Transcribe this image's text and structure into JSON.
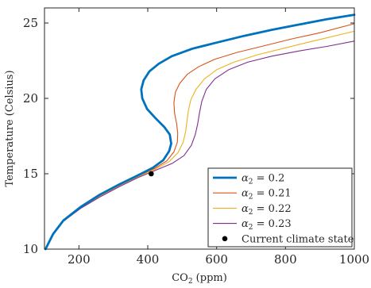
{
  "chart_data": {
    "type": "line",
    "title": "",
    "xlabel": "CO",
    "xlabel_sub": "2",
    "xlabel_unit": " (ppm)",
    "ylabel": "Temperature (Celsius)",
    "xlim": [
      100,
      1000
    ],
    "ylim": [
      10,
      26
    ],
    "xticks": [
      200,
      400,
      600,
      800,
      1000
    ],
    "yticks": [
      10,
      15,
      20,
      25
    ],
    "grid": false,
    "legend_position": "bottom-right",
    "series": [
      {
        "name": "α2 = 0.2",
        "name_prefix": "α",
        "name_sub": "2",
        "name_suffix": " = 0.2",
        "color": "#0072BD",
        "emphasis": true,
        "points": [
          [
            103,
            10
          ],
          [
            125,
            11
          ],
          [
            155,
            11.9
          ],
          [
            205,
            12.8
          ],
          [
            260,
            13.6
          ],
          [
            318,
            14.3
          ],
          [
            372,
            14.9
          ],
          [
            415,
            15.4
          ],
          [
            445,
            15.9
          ],
          [
            462,
            16.5
          ],
          [
            468,
            17
          ],
          [
            464,
            17.6
          ],
          [
            448,
            18.1
          ],
          [
            422,
            18.7
          ],
          [
            398,
            19.3
          ],
          [
            384,
            20
          ],
          [
            381,
            20.6
          ],
          [
            388,
            21.2
          ],
          [
            405,
            21.8
          ],
          [
            432,
            22.3
          ],
          [
            470,
            22.8
          ],
          [
            530,
            23.3
          ],
          [
            600,
            23.7
          ],
          [
            680,
            24.15
          ],
          [
            760,
            24.55
          ],
          [
            840,
            24.9
          ],
          [
            920,
            25.25
          ],
          [
            1000,
            25.55
          ]
        ]
      },
      {
        "name": "α2 = 0.21",
        "name_prefix": "α",
        "name_sub": "2",
        "name_suffix": " = 0.21",
        "color": "#D95319",
        "emphasis": false,
        "points": [
          [
            103,
            10
          ],
          [
            125,
            11
          ],
          [
            155,
            11.9
          ],
          [
            205,
            12.8
          ],
          [
            260,
            13.55
          ],
          [
            318,
            14.25
          ],
          [
            372,
            14.85
          ],
          [
            420,
            15.35
          ],
          [
            455,
            15.85
          ],
          [
            476,
            16.45
          ],
          [
            486,
            17.1
          ],
          [
            487,
            17.7
          ],
          [
            484,
            18.3
          ],
          [
            478,
            19
          ],
          [
            476,
            19.7
          ],
          [
            480,
            20.4
          ],
          [
            493,
            21
          ],
          [
            515,
            21.6
          ],
          [
            548,
            22.1
          ],
          [
            595,
            22.6
          ],
          [
            660,
            23.05
          ],
          [
            740,
            23.5
          ],
          [
            820,
            23.95
          ],
          [
            900,
            24.35
          ],
          [
            1000,
            24.95
          ]
        ]
      },
      {
        "name": "α2 = 0.22",
        "name_prefix": "α",
        "name_sub": "2",
        "name_suffix": " = 0.22",
        "color": "#EDB120",
        "emphasis": false,
        "points": [
          [
            103,
            10
          ],
          [
            125,
            11
          ],
          [
            155,
            11.9
          ],
          [
            205,
            12.75
          ],
          [
            260,
            13.5
          ],
          [
            318,
            14.2
          ],
          [
            372,
            14.8
          ],
          [
            422,
            15.3
          ],
          [
            462,
            15.8
          ],
          [
            488,
            16.4
          ],
          [
            503,
            17.1
          ],
          [
            510,
            17.8
          ],
          [
            514,
            18.5
          ],
          [
            518,
            19.2
          ],
          [
            525,
            19.9
          ],
          [
            540,
            20.6
          ],
          [
            565,
            21.3
          ],
          [
            600,
            21.9
          ],
          [
            650,
            22.4
          ],
          [
            720,
            22.9
          ],
          [
            800,
            23.35
          ],
          [
            880,
            23.8
          ],
          [
            1000,
            24.45
          ]
        ]
      },
      {
        "name": "α2 = 0.23",
        "name_prefix": "α",
        "name_sub": "2",
        "name_suffix": " = 0.23",
        "color": "#7E2F8E",
        "emphasis": false,
        "points": [
          [
            103,
            10
          ],
          [
            125,
            11
          ],
          [
            155,
            11.85
          ],
          [
            205,
            12.7
          ],
          [
            260,
            13.45
          ],
          [
            318,
            14.15
          ],
          [
            372,
            14.75
          ],
          [
            425,
            15.25
          ],
          [
            472,
            15.7
          ],
          [
            505,
            16.2
          ],
          [
            527,
            16.9
          ],
          [
            538,
            17.6
          ],
          [
            545,
            18.3
          ],
          [
            550,
            19
          ],
          [
            557,
            19.8
          ],
          [
            570,
            20.6
          ],
          [
            595,
            21.3
          ],
          [
            635,
            21.9
          ],
          [
            690,
            22.4
          ],
          [
            760,
            22.8
          ],
          [
            840,
            23.15
          ],
          [
            920,
            23.45
          ],
          [
            1000,
            23.8
          ]
        ]
      }
    ],
    "marker": {
      "name": "Current climate state",
      "x": 410,
      "y": 15,
      "color": "#000000"
    }
  }
}
